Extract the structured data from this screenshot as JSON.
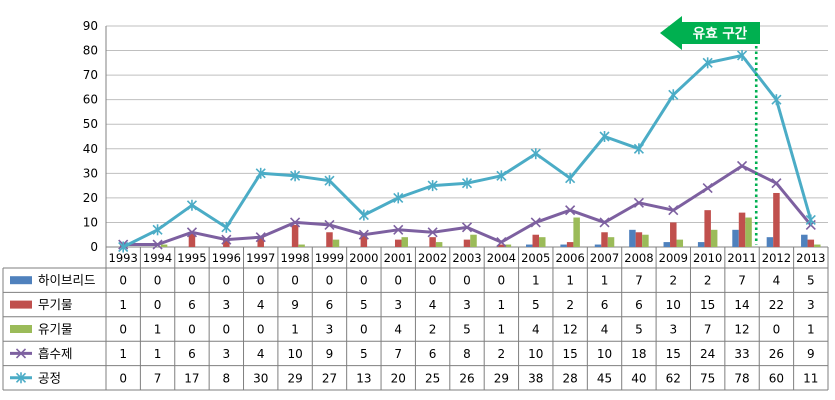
{
  "chart_data": {
    "type": "bar+line",
    "categories": [
      "1993",
      "1994",
      "1995",
      "1996",
      "1997",
      "1998",
      "1999",
      "2000",
      "2001",
      "2002",
      "2003",
      "2004",
      "2005",
      "2006",
      "2007",
      "2008",
      "2009",
      "2010",
      "2011",
      "2012",
      "2013"
    ],
    "ylim": [
      0,
      90
    ],
    "yticks": [
      0,
      10,
      20,
      30,
      40,
      50,
      60,
      70,
      80,
      90
    ],
    "grid": true,
    "legend_placement": "data-table-left",
    "series": [
      {
        "name": "하이브리드",
        "kind": "bar",
        "color": "#4F81BD",
        "values": [
          0,
          0,
          0,
          0,
          0,
          0,
          0,
          0,
          0,
          0,
          0,
          0,
          1,
          1,
          1,
          7,
          2,
          2,
          7,
          4,
          5
        ]
      },
      {
        "name": "무기물",
        "kind": "bar",
        "color": "#C0504D",
        "values": [
          1,
          0,
          6,
          3,
          4,
          9,
          6,
          5,
          3,
          4,
          3,
          1,
          5,
          2,
          6,
          6,
          10,
          15,
          14,
          22,
          3
        ]
      },
      {
        "name": "유기물",
        "kind": "bar",
        "color": "#9BBB59",
        "values": [
          0,
          1,
          0,
          0,
          0,
          1,
          3,
          0,
          4,
          2,
          5,
          1,
          4,
          12,
          4,
          5,
          3,
          7,
          12,
          0,
          1
        ]
      },
      {
        "name": "흡수제",
        "kind": "line",
        "color": "#7D60A0",
        "marker": "x",
        "values": [
          1,
          1,
          6,
          3,
          4,
          10,
          9,
          5,
          7,
          6,
          8,
          2,
          10,
          15,
          10,
          18,
          15,
          24,
          33,
          26,
          9
        ]
      },
      {
        "name": "공정",
        "kind": "line",
        "color": "#4BACC6",
        "marker": "star",
        "values": [
          0,
          7,
          17,
          8,
          30,
          29,
          27,
          13,
          20,
          25,
          26,
          29,
          38,
          28,
          45,
          40,
          62,
          75,
          78,
          60,
          11
        ]
      }
    ],
    "annotation": {
      "text": "유효 구간",
      "color": "#00B050",
      "marker_after_category": "2011"
    }
  }
}
